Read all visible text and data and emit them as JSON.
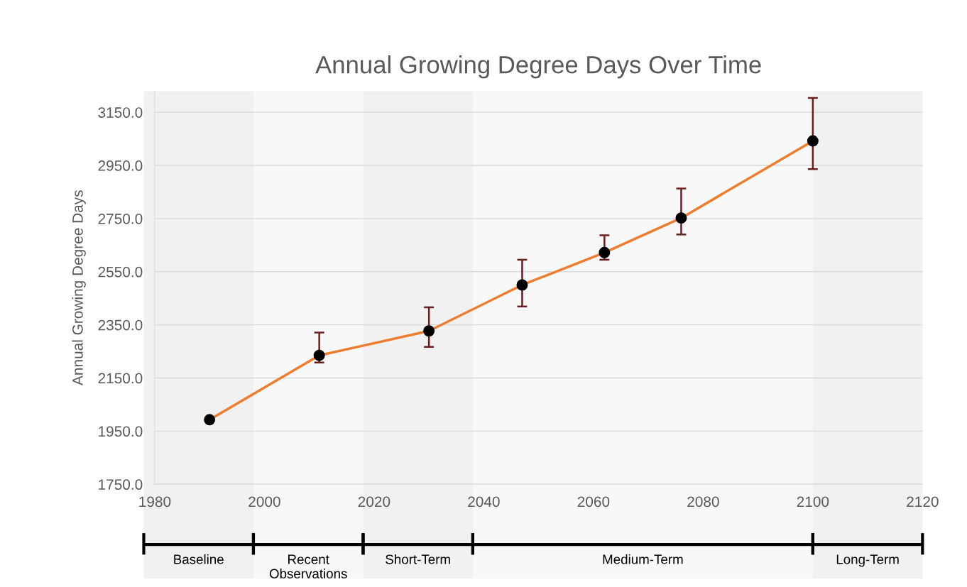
{
  "chart_data": {
    "type": "line",
    "title": "Annual Growing Degree Days Over Time",
    "ylabel": "Annual Growing Degree Days",
    "x": [
      1990,
      2010,
      2030,
      2047,
      2062,
      2076,
      2100
    ],
    "series": [
      {
        "color": "#ed7d31",
        "values": [
          1993,
          2235,
          2327,
          2500,
          2622,
          2752,
          3042
        ],
        "errors": [
          null,
          [
            2208,
            2321
          ],
          [
            2267,
            2416
          ],
          [
            2419,
            2595
          ],
          [
            2595,
            2687
          ],
          [
            2690,
            2863
          ],
          [
            2936,
            3204
          ]
        ]
      }
    ],
    "marker": "circle",
    "line_style": "solid",
    "grid": "y",
    "xlim": [
      1980,
      2120
    ],
    "xticks": [
      1980,
      2000,
      2020,
      2040,
      2060,
      2080,
      2100,
      2120
    ],
    "ylim": [
      1750,
      3230
    ],
    "yticks": [
      {
        "value": 1750,
        "label": "1750.0"
      },
      {
        "value": 1950,
        "label": "1950.0"
      },
      {
        "value": 2150,
        "label": "2150.0"
      },
      {
        "value": 2350,
        "label": "2350.0"
      },
      {
        "value": 2550,
        "label": "2550.0"
      },
      {
        "value": 2750,
        "label": "2750.0"
      },
      {
        "value": 2950,
        "label": "2950.0"
      },
      {
        "value": 3150,
        "label": "3150.0"
      }
    ],
    "bands": [
      {
        "axis": "x",
        "from": 1978,
        "to": 1998,
        "label": "Baseline",
        "color": "#f1f1f1"
      },
      {
        "axis": "x",
        "from": 1998,
        "to": 2018,
        "label": "Recent\nObservations",
        "color": "#f8f8f8"
      },
      {
        "axis": "x",
        "from": 2018,
        "to": 2038,
        "label": "Short-Term",
        "color": "#f1f1f1"
      },
      {
        "axis": "x",
        "from": 2038,
        "to": 2100,
        "label": "Medium-Term",
        "color": "#f8f8f8"
      },
      {
        "axis": "x",
        "from": 2100,
        "to": 2120,
        "label": "Long-Term",
        "color": "#f1f1f1"
      }
    ]
  }
}
